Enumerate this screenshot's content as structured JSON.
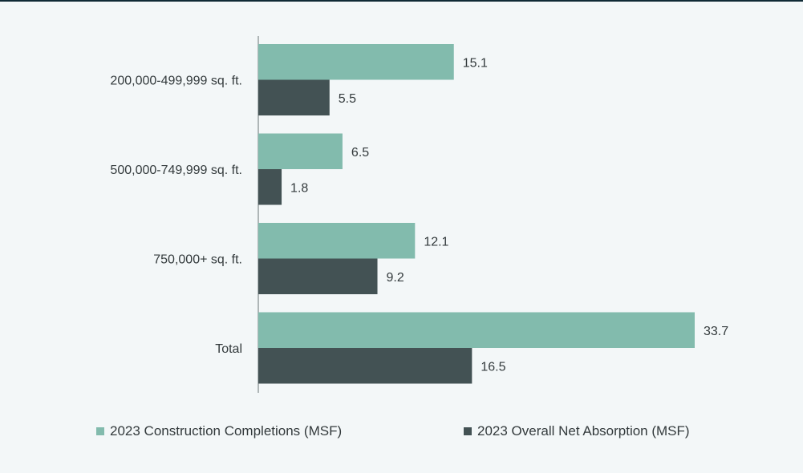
{
  "chart_data": {
    "type": "bar",
    "orientation": "horizontal",
    "categories": [
      "200,000-499,999 sq. ft.",
      "500,000-749,999 sq. ft.",
      "750,000+ sq. ft.",
      "Total"
    ],
    "series": [
      {
        "name": "2023 Construction Completions (MSF)",
        "color": "#82bbad",
        "values": [
          15.1,
          6.5,
          12.1,
          33.7
        ],
        "labels": [
          "15.1",
          "6.5",
          "12.1",
          "33.7"
        ]
      },
      {
        "name": "2023 Overall Net Absorption (MSF)",
        "color": "#435254",
        "values": [
          5.5,
          1.8,
          9.2,
          16.5
        ],
        "labels": [
          "5.5",
          "1.8",
          "9.2",
          "16.5"
        ]
      }
    ],
    "xlim": [
      0,
      33.7
    ],
    "grid": false,
    "legend_position": "bottom"
  },
  "colors": {
    "background": "#f3f7f8",
    "axis": "#6b7476",
    "text": "#333a3c"
  }
}
